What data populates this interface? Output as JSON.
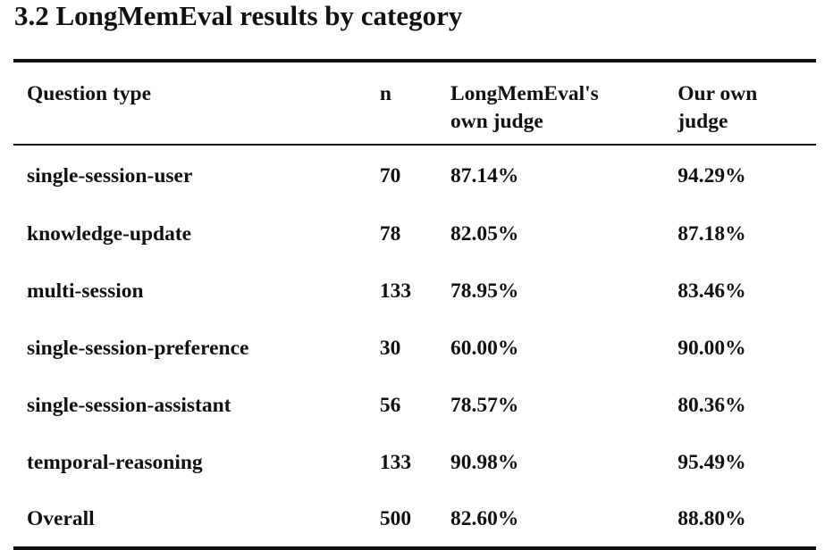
{
  "section": {
    "title": "3.2 LongMemEval results by category"
  },
  "table": {
    "headers": {
      "question_type": "Question type",
      "n": "n",
      "longmemeval_judge": [
        "LongMemEval's",
        "own judge"
      ],
      "own_judge": [
        "Our own",
        "judge"
      ]
    },
    "rows": [
      {
        "question_type": "single-session-user",
        "n": "70",
        "longmemeval_judge": "87.14%",
        "own_judge": "94.29%"
      },
      {
        "question_type": "knowledge-update",
        "n": "78",
        "longmemeval_judge": "82.05%",
        "own_judge": "87.18%"
      },
      {
        "question_type": "multi-session",
        "n": "133",
        "longmemeval_judge": "78.95%",
        "own_judge": "83.46%"
      },
      {
        "question_type": "single-session-preference",
        "n": "30",
        "longmemeval_judge": "60.00%",
        "own_judge": "90.00%"
      },
      {
        "question_type": "single-session-assistant",
        "n": "56",
        "longmemeval_judge": "78.57%",
        "own_judge": "80.36%"
      },
      {
        "question_type": "temporal-reasoning",
        "n": "133",
        "longmemeval_judge": "90.98%",
        "own_judge": "95.49%"
      },
      {
        "question_type": "Overall",
        "n": "500",
        "longmemeval_judge": "82.60%",
        "own_judge": "88.80%"
      }
    ]
  }
}
